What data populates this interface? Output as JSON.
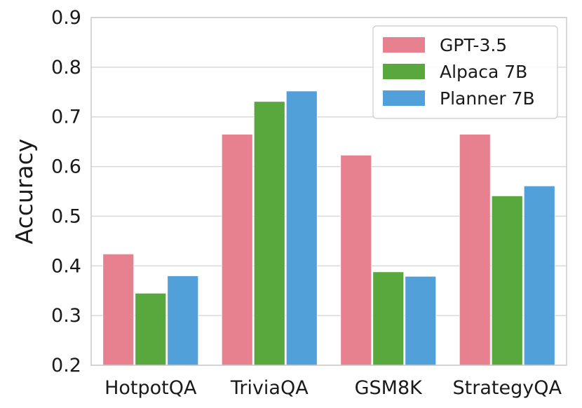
{
  "chart_data": {
    "type": "bar",
    "title": "",
    "xlabel": "",
    "ylabel": "Accuracy",
    "ylim": [
      0.2,
      0.9
    ],
    "yticks": [
      "0.2",
      "0.3",
      "0.4",
      "0.5",
      "0.6",
      "0.7",
      "0.8",
      "0.9"
    ],
    "grid": true,
    "legend_position": "top-right",
    "categories": [
      "HotpotQA",
      "TriviaQA",
      "GSM8K",
      "StrategyQA"
    ],
    "series": [
      {
        "name": "GPT-3.5",
        "color": "#E8818F",
        "values": [
          0.424,
          0.665,
          0.623,
          0.665
        ]
      },
      {
        "name": "Alpaca 7B",
        "color": "#58A83E",
        "values": [
          0.345,
          0.731,
          0.388,
          0.541
        ]
      },
      {
        "name": "Planner 7B",
        "color": "#51A0DA",
        "values": [
          0.38,
          0.752,
          0.379,
          0.561
        ]
      }
    ]
  }
}
